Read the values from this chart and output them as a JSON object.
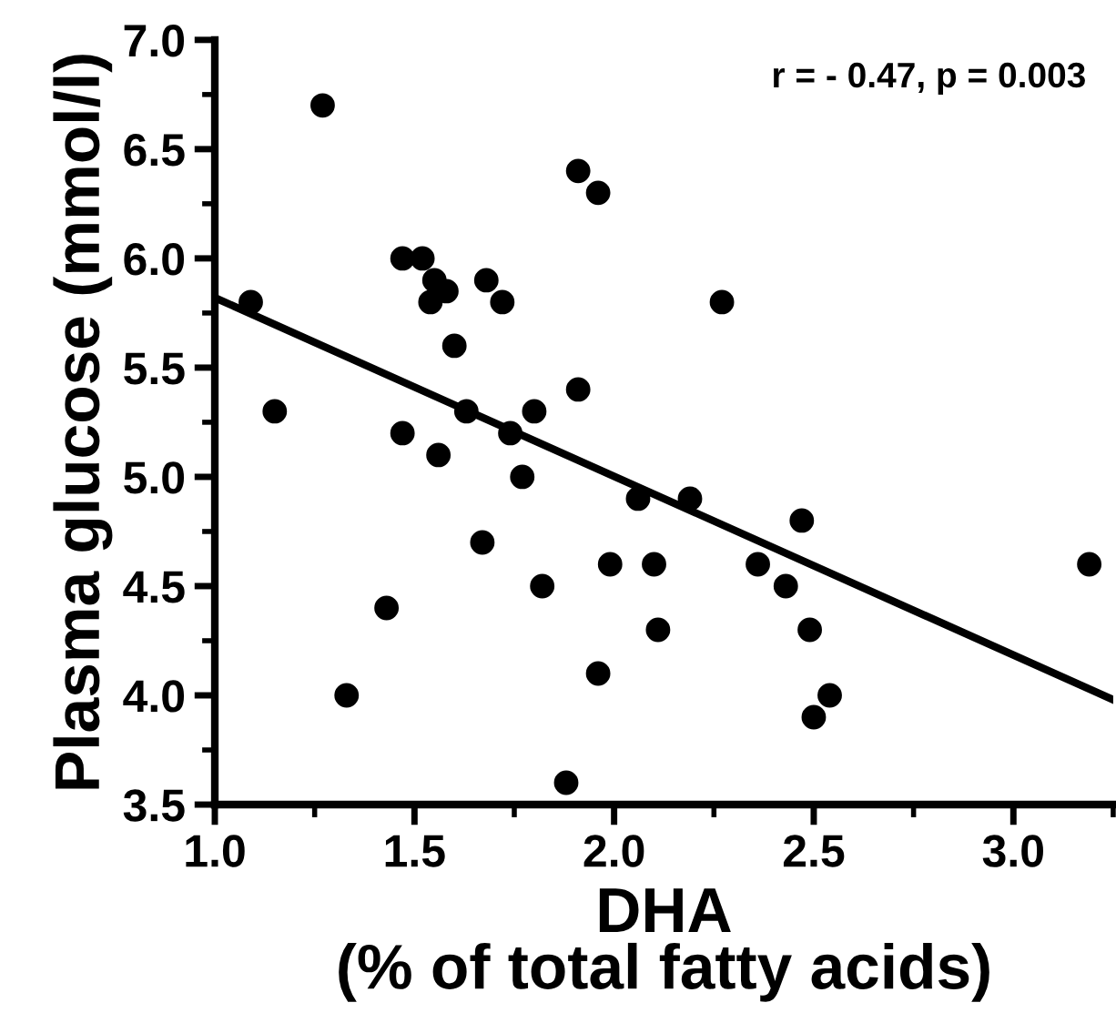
{
  "chart_data": {
    "type": "scatter",
    "xlabel": "DHA\n(% of total fatty acids)",
    "ylabel": "Plasma glucose (mmol/l)",
    "annotations": [
      "r = - 0.47, p = 0.003"
    ],
    "xlim": [
      1.0,
      3.25
    ],
    "ylim": [
      3.5,
      7.0
    ],
    "xticks": [
      {
        "value": 1.0,
        "label": "1.0"
      },
      {
        "value": 1.5,
        "label": "1.5"
      },
      {
        "value": 2.0,
        "label": "2.0"
      },
      {
        "value": 2.5,
        "label": "2.5"
      },
      {
        "value": 3.0,
        "label": "3.0"
      }
    ],
    "yticks": [
      {
        "value": 3.5,
        "label": "3.5"
      },
      {
        "value": 4.0,
        "label": "4.0"
      },
      {
        "value": 4.5,
        "label": "4.5"
      },
      {
        "value": 5.0,
        "label": "5.0"
      },
      {
        "value": 5.5,
        "label": "5.5"
      },
      {
        "value": 6.0,
        "label": "6.0"
      },
      {
        "value": 6.5,
        "label": "6.5"
      },
      {
        "value": 7.0,
        "label": "7.0"
      }
    ],
    "grid": false,
    "series": [
      {
        "marker": "circle",
        "color": "#000000",
        "x": [
          1.27,
          1.09,
          1.15,
          1.47,
          1.52,
          1.55,
          1.58,
          1.54,
          1.68,
          1.72,
          1.6,
          1.91,
          1.96,
          1.91,
          1.63,
          1.8,
          1.74,
          1.47,
          1.56,
          1.77,
          2.06,
          1.67,
          1.99,
          2.1,
          1.82,
          1.43,
          1.33,
          1.96,
          1.88,
          2.11,
          2.36,
          2.43,
          2.49,
          2.54,
          2.5,
          3.19,
          2.27,
          2.19,
          2.47
        ],
        "values": [
          6.7,
          5.8,
          5.3,
          6.0,
          6.0,
          5.9,
          5.85,
          5.8,
          5.9,
          5.8,
          5.6,
          6.4,
          6.3,
          5.4,
          5.3,
          5.3,
          5.2,
          5.2,
          5.1,
          5.0,
          4.9,
          4.7,
          4.6,
          4.6,
          4.5,
          4.4,
          4.0,
          4.1,
          3.6,
          4.3,
          4.6,
          4.5,
          4.3,
          4.0,
          3.9,
          4.6,
          5.8,
          4.9,
          4.8
        ]
      },
      {
        "type": "line",
        "color": "#000000",
        "x": [
          1.0,
          3.25
        ],
        "values": [
          5.82,
          3.98
        ]
      }
    ]
  }
}
